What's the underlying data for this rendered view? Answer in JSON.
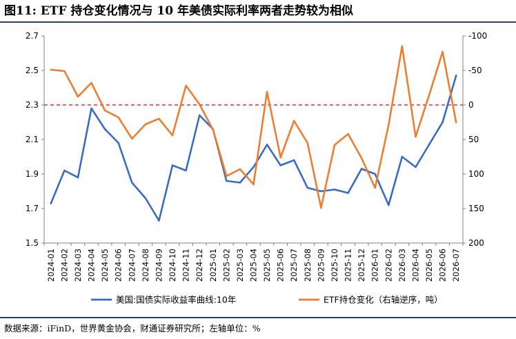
{
  "title": "图11: ETF 持仓变化情况与 10 年美债实际利率两者走势较为相似",
  "source": "数据来源：iFinD，世界黄金协会，财通证券研究所；左轴单位：%",
  "colors": {
    "series1": "#3a6bc4",
    "series2": "#ed7d31",
    "refline": "#e03030",
    "axis": "#7f7f7f"
  },
  "chart_data": {
    "type": "line",
    "categories": [
      "2024-01",
      "2024-02",
      "2024-03",
      "2024-04",
      "2024-05",
      "2024-06",
      "2024-07",
      "2024-08",
      "2024-09",
      "2024-10",
      "2024-11",
      "2024-12",
      "2025-01",
      "2025-02",
      "2025-03",
      "2025-04",
      "2025-05",
      "2025-06",
      "2025-07",
      "2025-08",
      "2025-09",
      "2025-10",
      "2025-11",
      "2025-12",
      "2026-01",
      "2026-02",
      "2026-03",
      "2026-04",
      "2026-05",
      "2026-06",
      "2026-07"
    ],
    "left_axis": {
      "ylim": [
        1.5,
        2.7
      ],
      "ticks": [
        "1.5",
        "1.7",
        "1.9",
        "2.1",
        "2.3",
        "2.5",
        "2.7"
      ]
    },
    "right_axis": {
      "ylim": [
        200,
        -100
      ],
      "inverted": true,
      "ticks": [
        "200",
        "150",
        "100",
        "50",
        "0",
        "-50",
        "-100"
      ]
    },
    "reference_line": {
      "axis": "right",
      "value": 0,
      "style": "dashed"
    },
    "series": [
      {
        "name": "美国:国债实际收益率曲线:10年",
        "axis": "left",
        "color": "#3a6bc4",
        "values": [
          1.73,
          1.92,
          1.88,
          2.28,
          2.16,
          2.08,
          1.85,
          1.76,
          1.63,
          1.95,
          1.92,
          2.24,
          2.16,
          1.86,
          1.85,
          1.94,
          2.07,
          1.95,
          1.98,
          1.82,
          1.8,
          1.81,
          1.79,
          1.93,
          1.9,
          1.72,
          2.0,
          1.94,
          2.07,
          2.2,
          2.47
        ]
      },
      {
        "name": "ETF持仓变化（右轴逆序，吨）",
        "axis": "right",
        "color": "#ed7d31",
        "values": [
          -51,
          -49,
          -12,
          -32,
          8,
          18,
          49,
          28,
          20,
          44,
          -28,
          -1,
          36,
          103,
          93,
          115,
          -19,
          76,
          23,
          55,
          149,
          58,
          42,
          77,
          120,
          29,
          -85,
          46,
          -14,
          -77,
          25
        ]
      }
    ],
    "legend": {
      "position": "bottom"
    },
    "grid": false
  }
}
